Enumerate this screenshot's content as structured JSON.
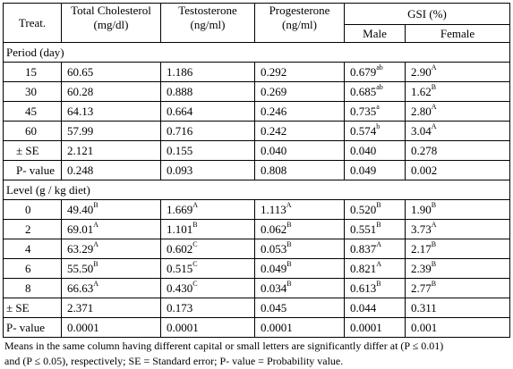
{
  "headers": {
    "treat": "Treat.",
    "cholesterol_line1": "Total Cholesterol",
    "cholesterol_line2": "(mg/dl)",
    "testosterone_line1": "Testosterone",
    "testosterone_line2": "(ng/ml)",
    "progesterone_line1": "Progesterone",
    "progesterone_line2": "(ng/ml)",
    "gsi": "GSI (%)",
    "male": "Male",
    "female": "Female"
  },
  "period": {
    "title": "Period (day)",
    "rows": [
      {
        "label": "15",
        "chol": "60.65",
        "chol_sup": "",
        "test": "1.186",
        "test_sup": "",
        "prog": "0.292",
        "prog_sup": "",
        "male": "0.679",
        "male_sup": "ab",
        "female": "2.90",
        "female_sup": "A"
      },
      {
        "label": "30",
        "chol": "60.28",
        "chol_sup": "",
        "test": "0.888",
        "test_sup": "",
        "prog": "0.269",
        "prog_sup": "",
        "male": "0.685",
        "male_sup": "ab",
        "female": "1.62",
        "female_sup": "B"
      },
      {
        "label": "45",
        "chol": "64.13",
        "chol_sup": "",
        "test": "0.664",
        "test_sup": "",
        "prog": "0.246",
        "prog_sup": "",
        "male": "0.735",
        "male_sup": "a",
        "female": "2.80",
        "female_sup": "A"
      },
      {
        "label": "60",
        "chol": "57.99",
        "chol_sup": "",
        "test": "0.716",
        "test_sup": "",
        "prog": "0.242",
        "prog_sup": "",
        "male": "0.574",
        "male_sup": "b",
        "female": "3.04",
        "female_sup": "A"
      }
    ],
    "se": {
      "label": "± SE",
      "chol": "2.121",
      "test": "0.155",
      "prog": "0.040",
      "male": "0.040",
      "female": "0.278"
    },
    "p": {
      "label": "P- value",
      "chol": "0.248",
      "test": "0.093",
      "prog": "0.808",
      "male": "0.049",
      "female": "0.002"
    }
  },
  "level": {
    "title": "Level (g / kg diet)",
    "rows": [
      {
        "label": "0",
        "chol": "49.40",
        "chol_sup": "B",
        "test": "1.669",
        "test_sup": "A",
        "prog": "1.113",
        "prog_sup": "A",
        "male": "0.520",
        "male_sup": "B",
        "female": "1.90",
        "female_sup": "B"
      },
      {
        "label": "2",
        "chol": "69.01",
        "chol_sup": "A",
        "test": "1.101",
        "test_sup": "B",
        "prog": "0.062",
        "prog_sup": "B",
        "male": "0.551",
        "male_sup": "B",
        "female": "3.73",
        "female_sup": "A"
      },
      {
        "label": "4",
        "chol": "63.29",
        "chol_sup": "A",
        "test": "0.602",
        "test_sup": "C",
        "prog": "0.053",
        "prog_sup": "B",
        "male": "0.837",
        "male_sup": "A",
        "female": "2.17",
        "female_sup": "B"
      },
      {
        "label": "6",
        "chol": "55.50",
        "chol_sup": "B",
        "test": "0.515",
        "test_sup": "C",
        "prog": "0.049",
        "prog_sup": "B",
        "male": "0.821",
        "male_sup": "A",
        "female": "2.39",
        "female_sup": "B"
      },
      {
        "label": "8",
        "chol": "66.63",
        "chol_sup": "A",
        "test": "0.430",
        "test_sup": "C",
        "prog": "0.034",
        "prog_sup": "B",
        "male": "0.613",
        "male_sup": "B",
        "female": "2.77",
        "female_sup": "B"
      }
    ],
    "se": {
      "label": "± SE",
      "chol": "2.371",
      "test": "0.173",
      "prog": "0.045",
      "male": "0.044",
      "female": "0.311"
    },
    "p": {
      "label": "P- value",
      "chol": "0.0001",
      "test": "0.0001",
      "prog": "0.0001",
      "male": "0.0001",
      "female": "0.001"
    }
  },
  "footnote": {
    "line1": "Means in the same column having different capital or small letters are significantly differ at (P ≤ 0.01)",
    "line2": "and (P ≤  0.05), respectively; SE = Standard error; P- value = Probability value."
  }
}
